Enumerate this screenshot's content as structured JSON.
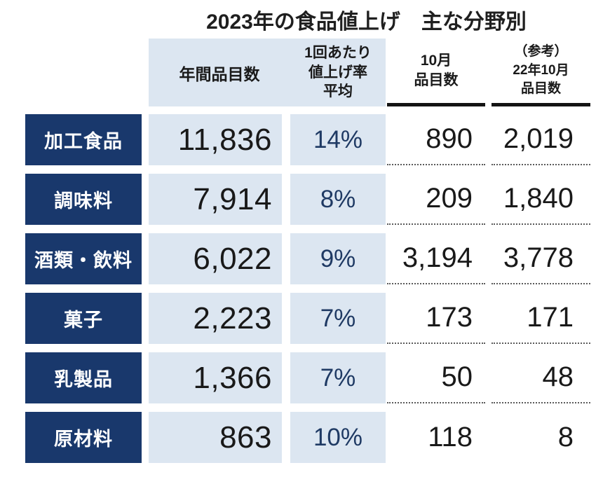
{
  "colors": {
    "navy": "#19386c",
    "light_blue": "#dce6f1",
    "rate_text": "#1f3a64",
    "header_underline": "#141414"
  },
  "chart_data": {
    "type": "table",
    "title": "2023年の食品値上げ　主な分野別",
    "column_headers": {
      "annual_items": "年間品目数",
      "avg_rate_lines": [
        "1回あたり",
        "値上げ率",
        "平均"
      ],
      "october_lines": [
        "10月",
        "品目数"
      ],
      "reference_lines": [
        "（参考）",
        "22年10月",
        "品目数"
      ]
    },
    "categories": [
      "加工食品",
      "調味料",
      "酒類・飲料",
      "菓子",
      "乳製品",
      "原材料"
    ],
    "series": [
      {
        "name": "年間品目数",
        "values": [
          11836,
          7914,
          6022,
          2223,
          1366,
          863
        ]
      },
      {
        "name": "1回あたり値上げ率平均",
        "unit": "%",
        "values": [
          14,
          8,
          9,
          7,
          7,
          10
        ]
      },
      {
        "name": "10月品目数",
        "values": [
          890,
          209,
          3194,
          173,
          50,
          118
        ]
      },
      {
        "name": "（参考）22年10月品目数",
        "values": [
          2019,
          1840,
          3778,
          171,
          48,
          8
        ]
      }
    ],
    "display_rows": [
      {
        "category": "加工食品",
        "annual": "11,836",
        "rate": "14%",
        "october": "890",
        "reference": "2,019"
      },
      {
        "category": "調味料",
        "annual": "7,914",
        "rate": "8%",
        "october": "209",
        "reference": "1,840"
      },
      {
        "category": "酒類・飲料",
        "annual": "6,022",
        "rate": "9%",
        "october": "3,194",
        "reference": "3,778"
      },
      {
        "category": "菓子",
        "annual": "2,223",
        "rate": "7%",
        "october": "173",
        "reference": "171"
      },
      {
        "category": "乳製品",
        "annual": "1,366",
        "rate": "7%",
        "october": "50",
        "reference": "48"
      },
      {
        "category": "原材料",
        "annual": "863",
        "rate": "10%",
        "october": "118",
        "reference": "8"
      }
    ]
  }
}
